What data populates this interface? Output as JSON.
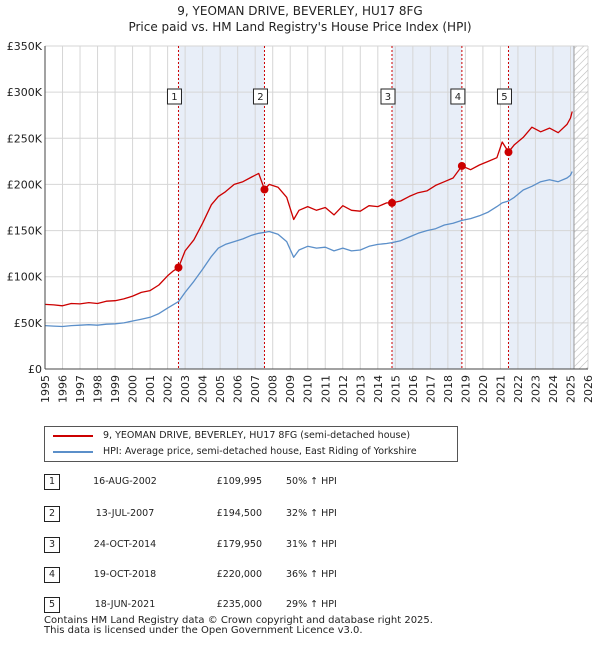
{
  "title": {
    "line1": "9, YEOMAN DRIVE, BEVERLEY, HU17 8FG",
    "line2": "Price paid vs. HM Land Registry's House Price Index (HPI)"
  },
  "legend": {
    "red_label": "9, YEOMAN DRIVE, BEVERLEY, HU17 8FG (semi-detached house)",
    "blue_label": "HPI: Average price, semi-detached house, East Riding of Yorkshire"
  },
  "colors": {
    "price_line": "#cc0000",
    "hpi_line": "#5b8fc9",
    "band_fill": "#e8eef8",
    "hatch": "#bbbbbb",
    "grid": "#d6d6d6"
  },
  "transactions": [
    {
      "num": "1",
      "date": "16-AUG-2002",
      "price": "£109,995",
      "hpi": "50% ↑ HPI"
    },
    {
      "num": "2",
      "date": "13-JUL-2007",
      "price": "£194,500",
      "hpi": "32% ↑ HPI"
    },
    {
      "num": "3",
      "date": "24-OCT-2014",
      "price": "£179,950",
      "hpi": "31% ↑ HPI"
    },
    {
      "num": "4",
      "date": "19-OCT-2018",
      "price": "£220,000",
      "hpi": "36% ↑ HPI"
    },
    {
      "num": "5",
      "date": "18-JUN-2021",
      "price": "£235,000",
      "hpi": "29% ↑ HPI"
    }
  ],
  "footer": {
    "line1": "Contains HM Land Registry data © Crown copyright and database right 2025.",
    "line2": "This data is licensed under the Open Government Licence v3.0."
  },
  "chart_data": {
    "type": "line",
    "title": "Price paid vs. HM Land Registry's House Price Index (HPI)",
    "xlabel": "",
    "ylabel": "",
    "xlim": [
      1995,
      2026
    ],
    "ylim": [
      0,
      350000
    ],
    "x_ticks": [
      1995,
      1996,
      1997,
      1998,
      1999,
      2000,
      2001,
      2002,
      2003,
      2004,
      2005,
      2006,
      2007,
      2008,
      2009,
      2010,
      2011,
      2012,
      2013,
      2014,
      2015,
      2016,
      2017,
      2018,
      2019,
      2020,
      2021,
      2022,
      2023,
      2024,
      2025,
      2026
    ],
    "y_ticks": [
      {
        "value": 0,
        "label": "£0"
      },
      {
        "value": 50000,
        "label": "£50K"
      },
      {
        "value": 100000,
        "label": "£100K"
      },
      {
        "value": 150000,
        "label": "£150K"
      },
      {
        "value": 200000,
        "label": "£200K"
      },
      {
        "value": 250000,
        "label": "£250K"
      },
      {
        "value": 300000,
        "label": "£300K"
      },
      {
        "value": 350000,
        "label": "£350K"
      }
    ],
    "grid": true,
    "projection_start": 2025.2,
    "series": [
      {
        "name": "9, YEOMAN DRIVE, BEVERLEY, HU17 8FG (semi-detached house)",
        "x": [
          1995.0,
          1995.5,
          1996.0,
          1996.5,
          1997.0,
          1997.5,
          1998.0,
          1998.5,
          1999.0,
          1999.5,
          2000.0,
          2000.5,
          2001.0,
          2001.5,
          2002.0,
          2002.3,
          2002.62,
          2003.0,
          2003.5,
          2004.0,
          2004.5,
          2004.9,
          2005.3,
          2005.8,
          2006.3,
          2006.8,
          2007.2,
          2007.53,
          2007.8,
          2008.3,
          2008.8,
          2009.2,
          2009.5,
          2010.0,
          2010.5,
          2011.0,
          2011.5,
          2012.0,
          2012.5,
          2013.0,
          2013.5,
          2014.0,
          2014.5,
          2014.81,
          2015.3,
          2015.8,
          2016.3,
          2016.8,
          2017.3,
          2017.8,
          2018.3,
          2018.8,
          2019.3,
          2019.8,
          2020.3,
          2020.8,
          2021.1,
          2021.46,
          2021.8,
          2022.3,
          2022.8,
          2023.3,
          2023.8,
          2024.3,
          2024.8,
          2025.0,
          2025.1
        ],
        "values": [
          70000,
          69500,
          68500,
          71000,
          70500,
          72000,
          71000,
          73500,
          74000,
          76000,
          79000,
          83000,
          85000,
          91000,
          101000,
          106000,
          109995,
          128000,
          140000,
          158000,
          178000,
          187000,
          192000,
          200000,
          203000,
          208000,
          212000,
          194500,
          200000,
          197000,
          186000,
          162000,
          172000,
          176000,
          172000,
          175000,
          167000,
          177000,
          172000,
          171000,
          177000,
          176000,
          180000,
          179950,
          182000,
          187000,
          191000,
          193000,
          199000,
          203000,
          207000,
          220000,
          216000,
          221000,
          225000,
          229000,
          246000,
          235000,
          243000,
          251000,
          262000,
          257000,
          261000,
          256000,
          265000,
          272000,
          279000
        ]
      },
      {
        "name": "HPI: Average price, semi-detached house, East Riding of Yorkshire",
        "x": [
          1995.0,
          1995.5,
          1996.0,
          1996.5,
          1997.0,
          1997.5,
          1998.0,
          1998.5,
          1999.0,
          1999.5,
          2000.0,
          2000.5,
          2001.0,
          2001.5,
          2002.0,
          2002.62,
          2003.0,
          2003.5,
          2004.0,
          2004.5,
          2004.9,
          2005.3,
          2005.8,
          2006.3,
          2006.8,
          2007.2,
          2007.53,
          2007.8,
          2008.3,
          2008.8,
          2009.2,
          2009.5,
          2010.0,
          2010.5,
          2011.0,
          2011.5,
          2012.0,
          2012.5,
          2013.0,
          2013.5,
          2014.0,
          2014.5,
          2014.81,
          2015.3,
          2015.8,
          2016.3,
          2016.8,
          2017.3,
          2017.8,
          2018.3,
          2018.8,
          2019.3,
          2019.8,
          2020.3,
          2020.8,
          2021.1,
          2021.46,
          2021.8,
          2022.3,
          2022.8,
          2023.3,
          2023.8,
          2024.3,
          2024.8,
          2025.0,
          2025.1
        ],
        "values": [
          47000,
          46500,
          46000,
          47000,
          47500,
          48000,
          47500,
          48500,
          49000,
          50000,
          52000,
          54000,
          56000,
          60000,
          66000,
          73000,
          83000,
          95000,
          108000,
          122000,
          131000,
          135000,
          138000,
          141000,
          145000,
          147000,
          148000,
          149000,
          146000,
          138000,
          121000,
          129000,
          133000,
          131000,
          132000,
          128000,
          131000,
          128000,
          129000,
          133000,
          135000,
          136000,
          137000,
          139000,
          143000,
          147000,
          150000,
          152000,
          156000,
          158000,
          161000,
          163000,
          166000,
          170000,
          176000,
          180000,
          182000,
          186000,
          194000,
          198000,
          203000,
          205000,
          203000,
          207000,
          210000,
          214000
        ]
      }
    ],
    "markers": [
      {
        "label": "1",
        "x": 2002.62,
        "y": 109995
      },
      {
        "label": "2",
        "x": 2007.53,
        "y": 194500
      },
      {
        "label": "3",
        "x": 2014.81,
        "y": 179950
      },
      {
        "label": "4",
        "x": 2018.8,
        "y": 220000
      },
      {
        "label": "5",
        "x": 2021.46,
        "y": 235000
      }
    ],
    "bands": [
      [
        2002.62,
        2007.53
      ],
      [
        2014.81,
        2018.8
      ],
      [
        2021.46,
        2025.2
      ]
    ]
  }
}
